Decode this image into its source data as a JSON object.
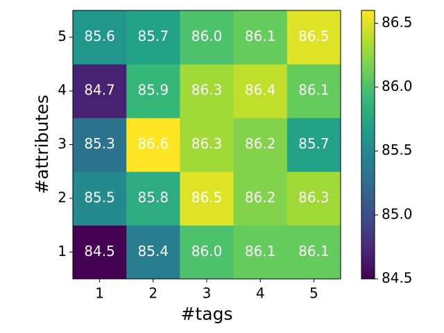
{
  "chart_data": {
    "type": "heatmap",
    "xlabel": "#tags",
    "ylabel": "#attributes",
    "x": [
      1,
      2,
      3,
      4,
      5
    ],
    "y": [
      1,
      2,
      3,
      4,
      5
    ],
    "values": [
      [
        84.5,
        85.4,
        86.0,
        86.1,
        86.1
      ],
      [
        85.5,
        85.8,
        86.5,
        86.2,
        86.3
      ],
      [
        85.3,
        86.6,
        86.3,
        86.2,
        85.7
      ],
      [
        84.7,
        85.9,
        86.3,
        86.4,
        86.1
      ],
      [
        85.6,
        85.7,
        86.0,
        86.1,
        86.5
      ]
    ],
    "value_labels": [
      [
        "84.5",
        "85.4",
        "86.0",
        "86.1",
        "86.1"
      ],
      [
        "85.5",
        "85.8",
        "86.5",
        "86.2",
        "86.3"
      ],
      [
        "85.3",
        "86.6",
        "86.3",
        "86.2",
        "85.7"
      ],
      [
        "84.7",
        "85.9",
        "86.3",
        "86.4",
        "86.1"
      ],
      [
        "85.6",
        "85.7",
        "86.0",
        "86.1",
        "86.5"
      ]
    ],
    "clim": [
      84.5,
      86.6
    ],
    "cticks": [
      84.5,
      {
        "value": 85,
        "label": "85.0"
      },
      85.5,
      {
        "value": 86,
        "label": "86.0"
      },
      86.5
    ],
    "colormap": [
      "#440154",
      "#482878",
      "#3e4989",
      "#31688e",
      "#26828e",
      "#1f9e89",
      "#35b779",
      "#6ece58",
      "#b5de2b",
      "#fde725"
    ]
  }
}
